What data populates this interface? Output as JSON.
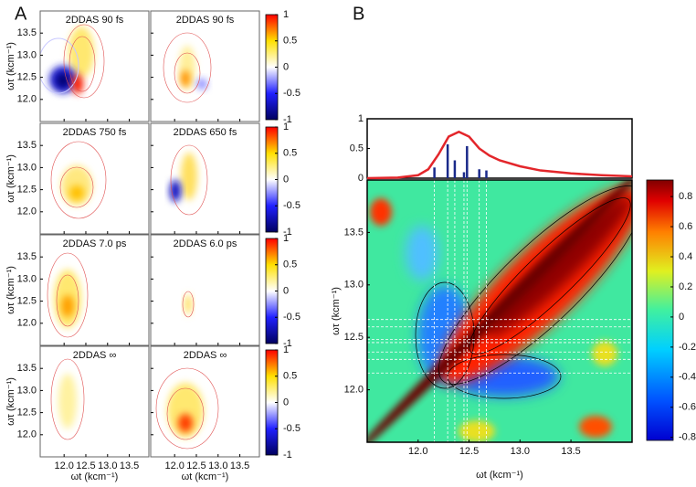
{
  "panel_labels": [
    "A",
    "B"
  ],
  "chart_data": [
    {
      "type": "heatmap_grid",
      "titles": [
        "2DDAS 90 fs",
        "2DDAS 90 fs",
        "2DDAS 750 fs",
        "2DDAS 650 fs",
        "2DDAS 7.0 ps",
        "2DDAS 6.0 ps",
        "2DDAS ∞",
        "2DDAS ∞"
      ],
      "xlabel": "ωt (kcm⁻¹)",
      "ylabel": "ωτ (kcm⁻¹)",
      "xlim": [
        11.45,
        13.95
      ],
      "ylim": [
        11.5,
        14.0
      ],
      "xticks": [
        {
          "value": 12,
          "label": "12.0"
        },
        12.5,
        {
          "value": 13,
          "label": "13.0"
        },
        13.5
      ],
      "yticks": [
        {
          "value": 12,
          "label": "12.0"
        },
        12.5,
        {
          "value": 13,
          "label": "13.0"
        },
        13.5
      ],
      "clim": [
        -1,
        1
      ],
      "cticks": [
        1,
        0.5,
        0,
        -0.5,
        -1
      ]
    },
    {
      "type": "line",
      "xlim": [
        11.5,
        14.1
      ],
      "ylim": [
        0,
        1
      ],
      "yticks": [
        0,
        0.5,
        1
      ],
      "line": {
        "color": "#e3262b",
        "x": [
          11.5,
          11.8,
          12.0,
          12.1,
          12.2,
          12.3,
          12.4,
          12.5,
          12.6,
          12.7,
          12.8,
          13.0,
          13.2,
          13.5,
          13.8,
          14.1
        ],
        "values": [
          0,
          0.01,
          0.05,
          0.15,
          0.4,
          0.7,
          0.78,
          0.7,
          0.5,
          0.38,
          0.3,
          0.2,
          0.13,
          0.08,
          0.05,
          0.03
        ]
      },
      "sticks": {
        "color": "#1a2a8a",
        "x": [
          12.16,
          12.29,
          12.36,
          12.45,
          12.48,
          12.6,
          12.67
        ],
        "values": [
          0.18,
          0.57,
          0.3,
          0.1,
          0.54,
          0.15,
          0.13
        ]
      }
    },
    {
      "type": "heatmap",
      "xlabel": "ωt (kcm⁻¹)",
      "ylabel": "ωτ (kcm⁻¹)",
      "xlim": [
        11.5,
        14.1
      ],
      "ylim": [
        11.5,
        14.0
      ],
      "xticks": [
        {
          "value": 12,
          "label": "12.0"
        },
        12.5,
        {
          "value": 13,
          "label": "13.0"
        },
        13.5
      ],
      "yticks": [
        {
          "value": 12,
          "label": "12.0"
        },
        12.5,
        {
          "value": 13,
          "label": "13.0"
        },
        13.5
      ],
      "clim": [
        -0.82,
        0.91
      ],
      "cticks": [
        0.8,
        0.6,
        0.4,
        0.2,
        0,
        -0.2,
        -0.4,
        -0.6,
        -0.8
      ]
    }
  ]
}
